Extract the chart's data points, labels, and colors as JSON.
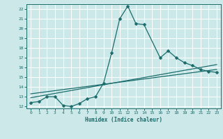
{
  "xlabel": "Humidex (Indice chaleur)",
  "bg_color": "#cce8e8",
  "grid_color": "#ffffff",
  "line_color": "#1a6b6b",
  "xlim": [
    -0.5,
    23.5
  ],
  "ylim": [
    11.8,
    22.5
  ],
  "yticks": [
    12,
    13,
    14,
    15,
    16,
    17,
    18,
    19,
    20,
    21,
    22
  ],
  "xticks": [
    0,
    1,
    2,
    3,
    4,
    5,
    6,
    7,
    8,
    9,
    10,
    11,
    12,
    13,
    14,
    15,
    16,
    17,
    18,
    19,
    20,
    21,
    22,
    23
  ],
  "series1_x": [
    0,
    1,
    2,
    3,
    4,
    5,
    6,
    7,
    8,
    9,
    10,
    11,
    12,
    13,
    14,
    16,
    17,
    18,
    19,
    20,
    21,
    22,
    23
  ],
  "series1_y": [
    12.4,
    12.5,
    13.0,
    13.0,
    12.1,
    12.0,
    12.3,
    12.8,
    13.0,
    14.4,
    17.5,
    21.0,
    22.3,
    20.5,
    20.4,
    17.0,
    17.7,
    17.0,
    16.5,
    16.2,
    15.8,
    15.6,
    15.5
  ],
  "series2_x": [
    0,
    23
  ],
  "series2_y": [
    12.9,
    16.3
  ],
  "series3_x": [
    0,
    23
  ],
  "series3_y": [
    13.3,
    15.8
  ],
  "markersize": 2.5,
  "linewidth": 0.9
}
